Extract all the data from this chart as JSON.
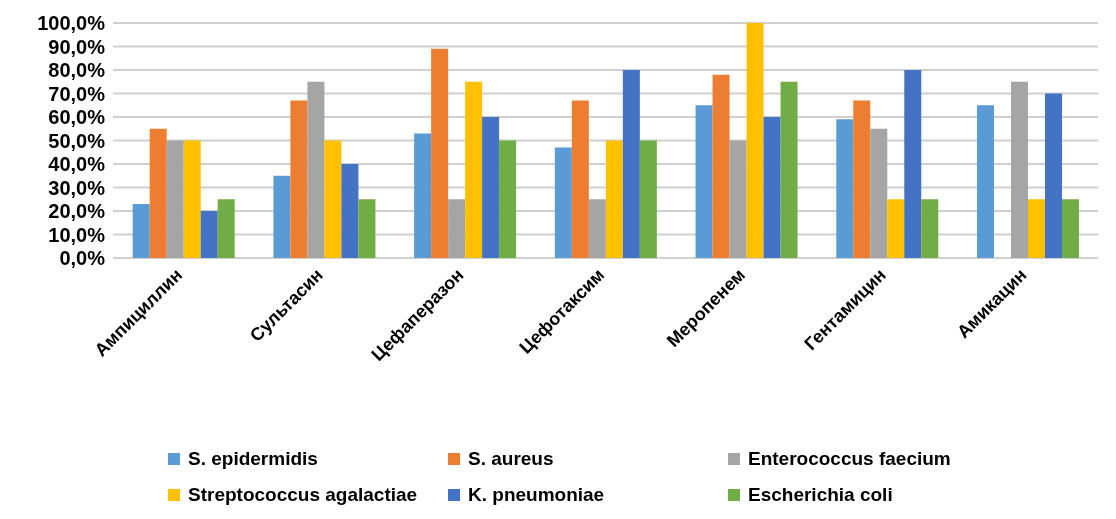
{
  "chart_data": {
    "type": "bar",
    "categories": [
      "Ампициллин",
      "Сультасин",
      "Цефаперазон",
      "Цефотаксим",
      "Меропенем",
      "Гентамицин",
      "Амикацин"
    ],
    "series": [
      {
        "name": "S. epidermidis",
        "color": "#5b9bd5",
        "values": [
          23,
          35,
          53,
          47,
          65,
          59,
          65
        ]
      },
      {
        "name": "S. aureus",
        "color": "#ed7d31",
        "values": [
          55,
          67,
          89,
          67,
          78,
          67,
          0
        ]
      },
      {
        "name": "Enterococcus faecium",
        "color": "#a5a5a5",
        "values": [
          50,
          75,
          25,
          25,
          50,
          55,
          75
        ]
      },
      {
        "name": "Streptococcus agalactiae",
        "color": "#ffc000",
        "values": [
          50,
          50,
          75,
          50,
          100,
          25,
          25
        ]
      },
      {
        "name": "K. pneumoniae",
        "color": "#4472c4",
        "values": [
          20,
          40,
          60,
          80,
          60,
          80,
          70
        ]
      },
      {
        "name": "Escherichia coli",
        "color": "#70ad47",
        "values": [
          25,
          25,
          50,
          50,
          75,
          25,
          25
        ]
      }
    ],
    "ylim": [
      0,
      100
    ],
    "yticks": [
      {
        "value": 0,
        "label": "0,0%"
      },
      {
        "value": 10,
        "label": "10,0%"
      },
      {
        "value": 20,
        "label": "20,0%"
      },
      {
        "value": 30,
        "label": "30,0%"
      },
      {
        "value": 40,
        "label": "40,0%"
      },
      {
        "value": 50,
        "label": "50,0%"
      },
      {
        "value": 60,
        "label": "60,0%"
      },
      {
        "value": 70,
        "label": "70,0%"
      },
      {
        "value": 80,
        "label": "80,0%"
      },
      {
        "value": 90,
        "label": "90,0%"
      },
      {
        "value": 100,
        "label": "100,0%"
      }
    ],
    "grid": "y",
    "legend": "bottom"
  }
}
